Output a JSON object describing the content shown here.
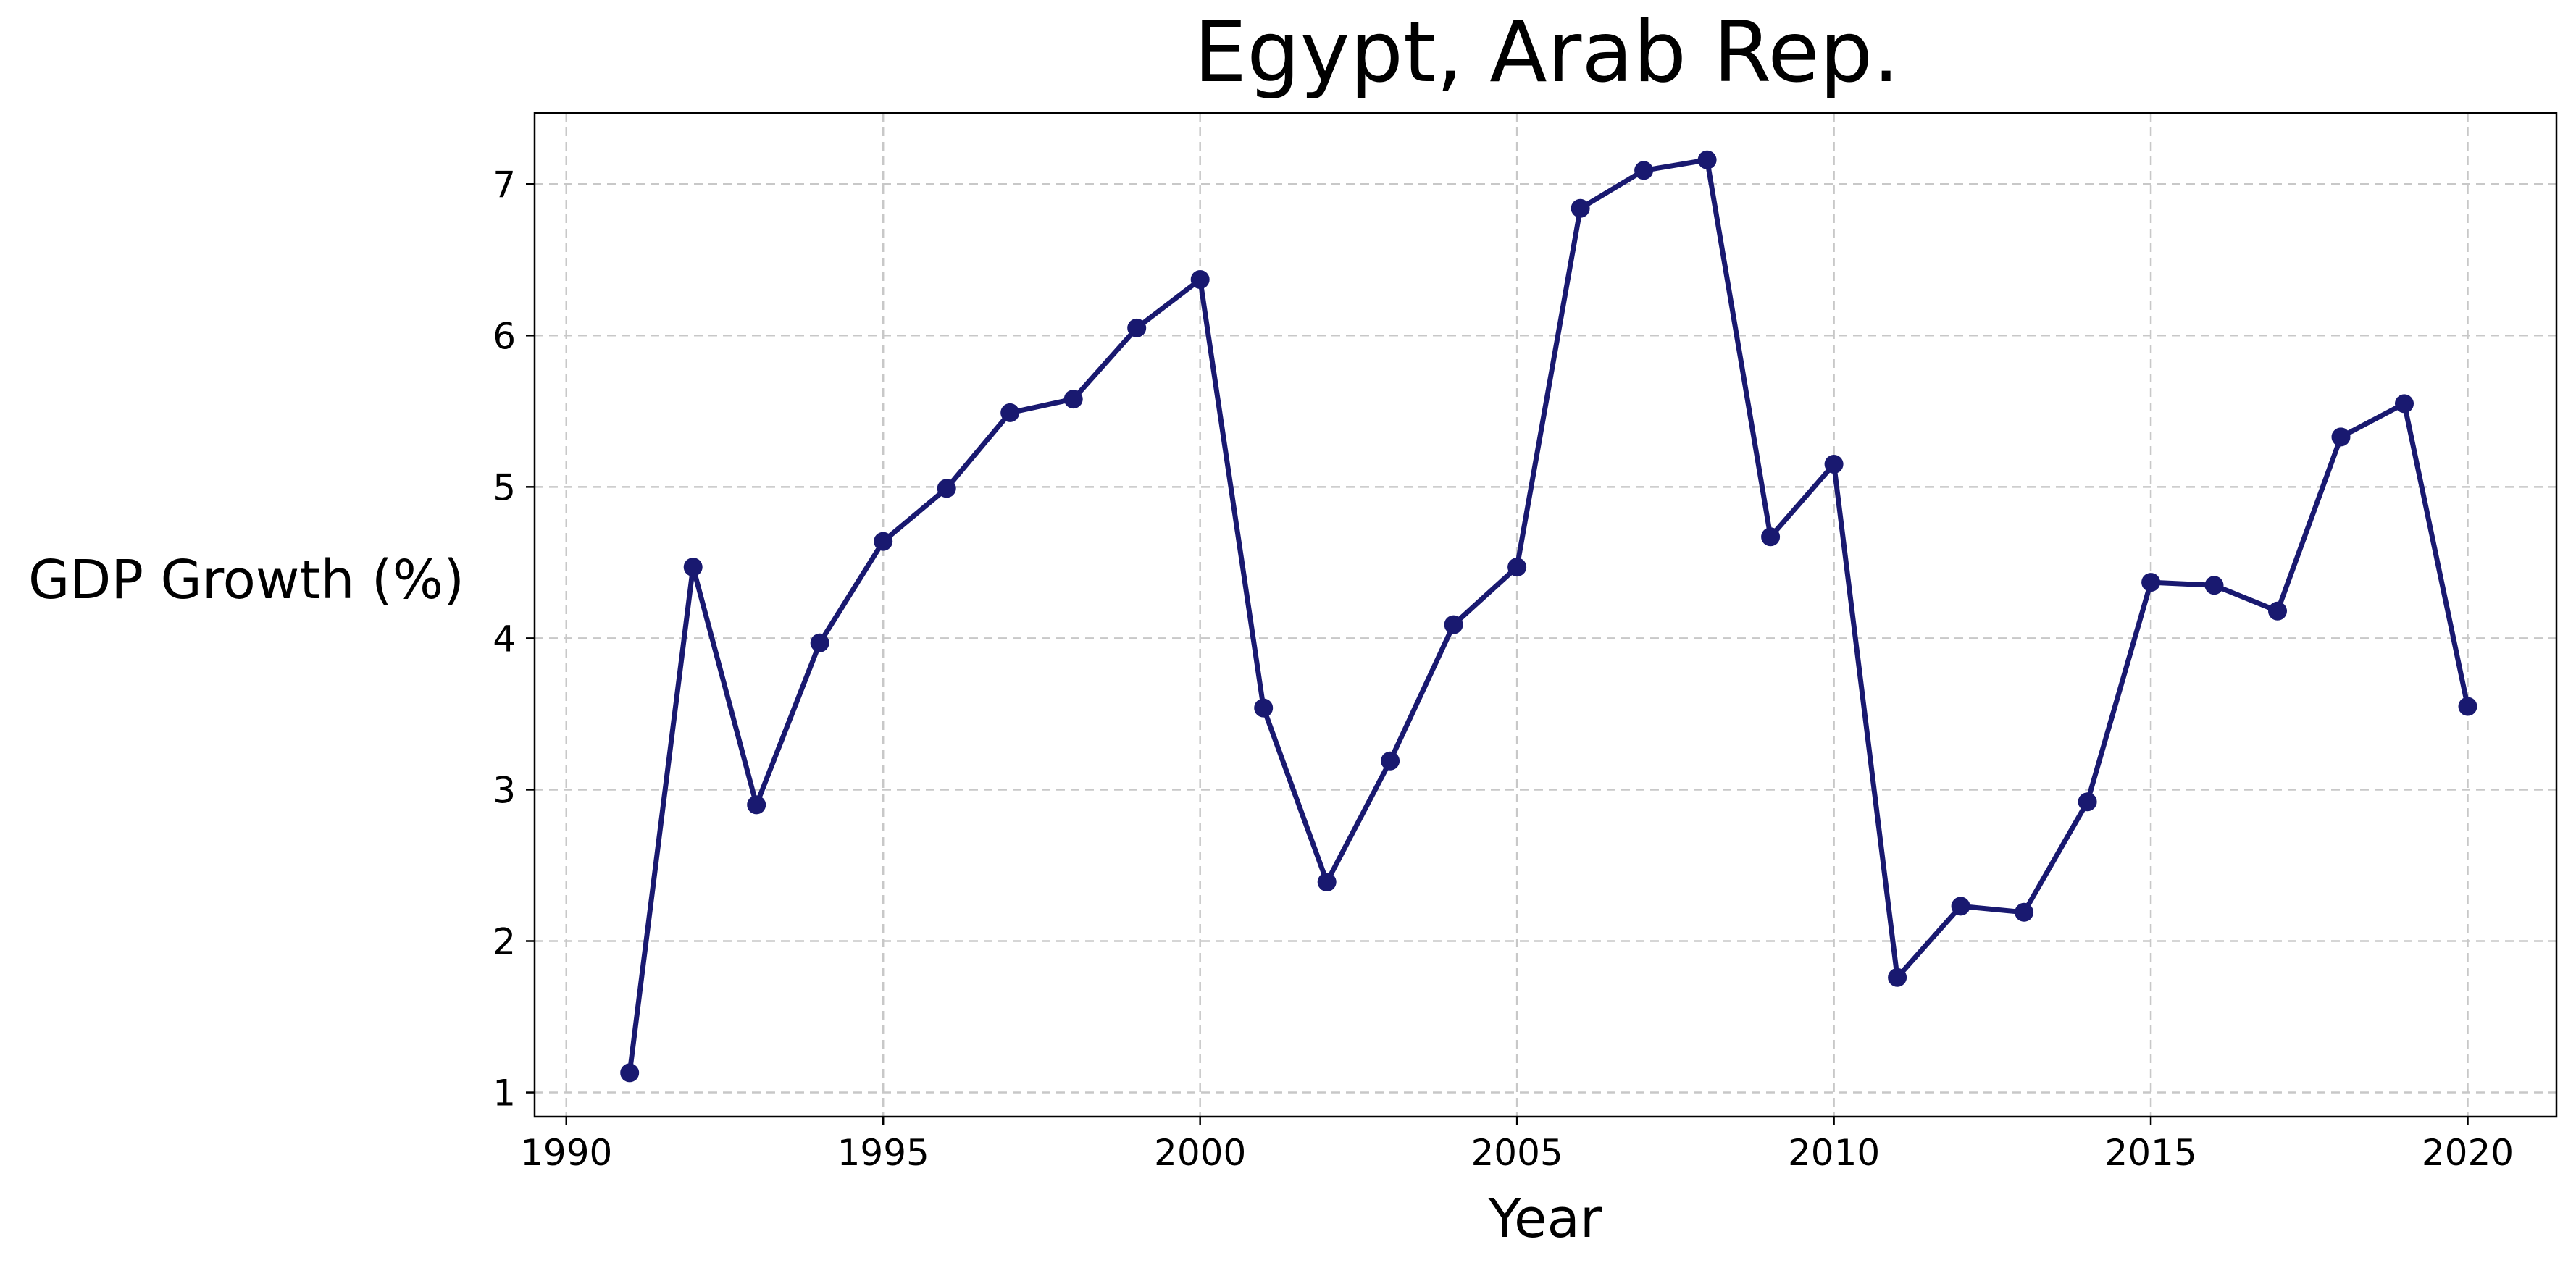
{
  "chart_data": {
    "type": "line",
    "title": "Egypt, Arab Rep.",
    "xlabel": "Year",
    "ylabel": "GDP Growth (%)",
    "xlim": [
      1989.5,
      2021.4
    ],
    "ylim": [
      0.84,
      7.47
    ],
    "xticks": [
      1990,
      1995,
      2000,
      2005,
      2010,
      2015,
      2020
    ],
    "yticks": [
      1,
      2,
      3,
      4,
      5,
      6,
      7
    ],
    "grid": true,
    "line_color": "#191970",
    "series": [
      {
        "x": [
          1991,
          1992,
          1993,
          1994,
          1995,
          1996,
          1997,
          1998,
          1999,
          2000,
          2001,
          2002,
          2003,
          2004,
          2005,
          2006,
          2007,
          2008,
          2009,
          2010,
          2011,
          2012,
          2013,
          2014,
          2015,
          2016,
          2017,
          2018,
          2019,
          2020
        ],
        "values": [
          1.13,
          4.47,
          2.9,
          3.97,
          4.64,
          4.99,
          5.49,
          5.58,
          6.05,
          6.37,
          3.54,
          2.39,
          3.19,
          4.09,
          4.47,
          6.84,
          7.09,
          7.16,
          4.67,
          5.15,
          1.76,
          2.23,
          2.19,
          2.92,
          4.37,
          4.35,
          4.18,
          5.33,
          5.55,
          3.55
        ]
      }
    ]
  }
}
